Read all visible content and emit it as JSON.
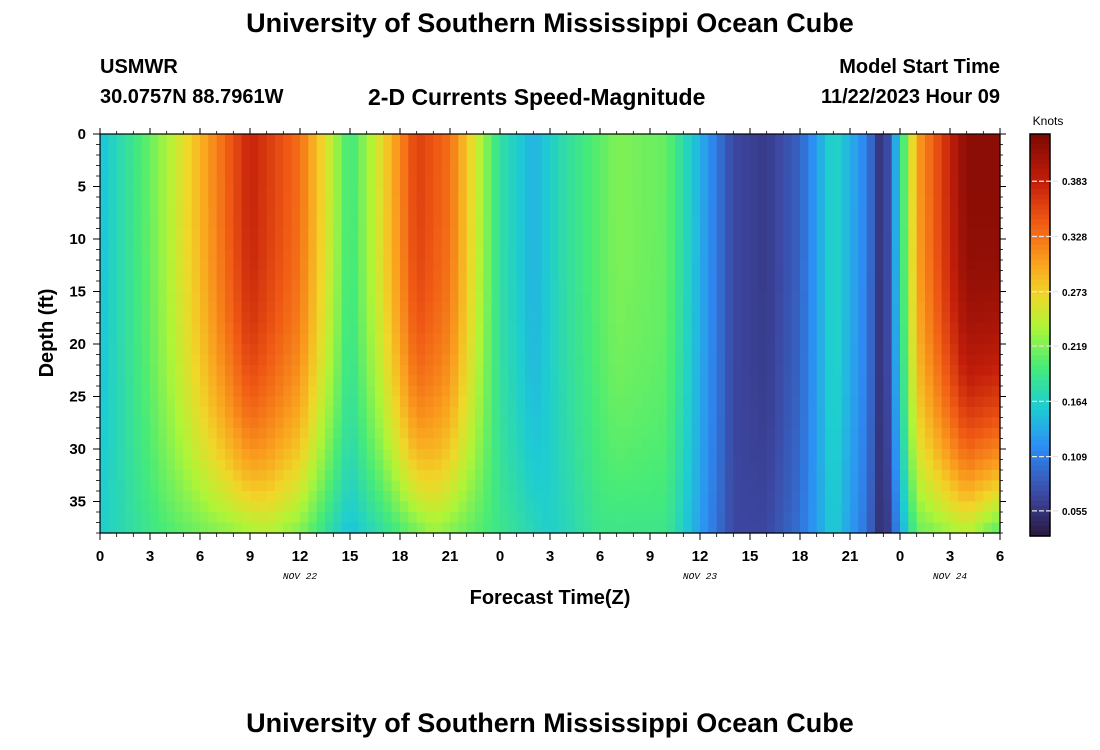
{
  "header": {
    "title": "University of Southern Mississippi Ocean Cube",
    "station": "USMWR",
    "coords": "30.0757N  88.7961W",
    "subtitle": "2-D Currents Speed-Magnitude",
    "model_start_label": "Model Start Time",
    "model_start_value": "11/22/2023 Hour 09"
  },
  "footer": {
    "title": "University of Southern Mississippi Ocean Cube"
  },
  "chart_data": {
    "type": "heatmap",
    "title": "2-D Currents Speed-Magnitude",
    "xlabel": "Forecast Time(Z)",
    "ylabel": "Depth (ft)",
    "x_tick_labels": [
      "0",
      "3",
      "6",
      "9",
      "12",
      "15",
      "18",
      "21",
      "0",
      "3",
      "6",
      "9",
      "12",
      "15",
      "18",
      "21",
      "0",
      "3",
      "6"
    ],
    "date_labels": [
      {
        "label": "NOV 22",
        "hour": 12
      },
      {
        "label": "NOV 23",
        "hour": 36
      },
      {
        "label": "NOV 24",
        "hour": 51
      }
    ],
    "x_range_hours": [
      0,
      54
    ],
    "y_ticks": [
      0,
      5,
      10,
      15,
      20,
      25,
      30,
      35
    ],
    "y_range": [
      0,
      38
    ],
    "colorbar": {
      "label": "Knots",
      "ticks": [
        0.055,
        0.109,
        0.164,
        0.219,
        0.273,
        0.328,
        0.383
      ],
      "range": [
        0.03,
        0.43
      ]
    },
    "surface_speed_profile": [
      {
        "hour": 0,
        "value": 0.15
      },
      {
        "hour": 3,
        "value": 0.21
      },
      {
        "hour": 6,
        "value": 0.29
      },
      {
        "hour": 9,
        "value": 0.38
      },
      {
        "hour": 12,
        "value": 0.33
      },
      {
        "hour": 14,
        "value": 0.24
      },
      {
        "hour": 15,
        "value": 0.19
      },
      {
        "hour": 17,
        "value": 0.27
      },
      {
        "hour": 19,
        "value": 0.36
      },
      {
        "hour": 21,
        "value": 0.33
      },
      {
        "hour": 24,
        "value": 0.18
      },
      {
        "hour": 26,
        "value": 0.14
      },
      {
        "hour": 28,
        "value": 0.18
      },
      {
        "hour": 31,
        "value": 0.22
      },
      {
        "hour": 34,
        "value": 0.21
      },
      {
        "hour": 36,
        "value": 0.14
      },
      {
        "hour": 38,
        "value": 0.07
      },
      {
        "hour": 40,
        "value": 0.06
      },
      {
        "hour": 42,
        "value": 0.09
      },
      {
        "hour": 44,
        "value": 0.17
      },
      {
        "hour": 46,
        "value": 0.11
      },
      {
        "hour": 47,
        "value": 0.04
      },
      {
        "hour": 49,
        "value": 0.3
      },
      {
        "hour": 52,
        "value": 0.42
      },
      {
        "hour": 54,
        "value": 0.42
      }
    ],
    "bottom_speed_profile": [
      {
        "hour": 0,
        "value": 0.16
      },
      {
        "hour": 4,
        "value": 0.2
      },
      {
        "hour": 7,
        "value": 0.22
      },
      {
        "hour": 10,
        "value": 0.24
      },
      {
        "hour": 12,
        "value": 0.22
      },
      {
        "hour": 14,
        "value": 0.17
      },
      {
        "hour": 15,
        "value": 0.15
      },
      {
        "hour": 17,
        "value": 0.18
      },
      {
        "hour": 20,
        "value": 0.23
      },
      {
        "hour": 24,
        "value": 0.19
      },
      {
        "hour": 27,
        "value": 0.16
      },
      {
        "hour": 30,
        "value": 0.19
      },
      {
        "hour": 34,
        "value": 0.19
      },
      {
        "hour": 36,
        "value": 0.13
      },
      {
        "hour": 38,
        "value": 0.07
      },
      {
        "hour": 40,
        "value": 0.07
      },
      {
        "hour": 42,
        "value": 0.1
      },
      {
        "hour": 44,
        "value": 0.16
      },
      {
        "hour": 46,
        "value": 0.1
      },
      {
        "hour": 47,
        "value": 0.04
      },
      {
        "hour": 49,
        "value": 0.21
      },
      {
        "hour": 52,
        "value": 0.24
      },
      {
        "hour": 54,
        "value": 0.2
      }
    ]
  }
}
